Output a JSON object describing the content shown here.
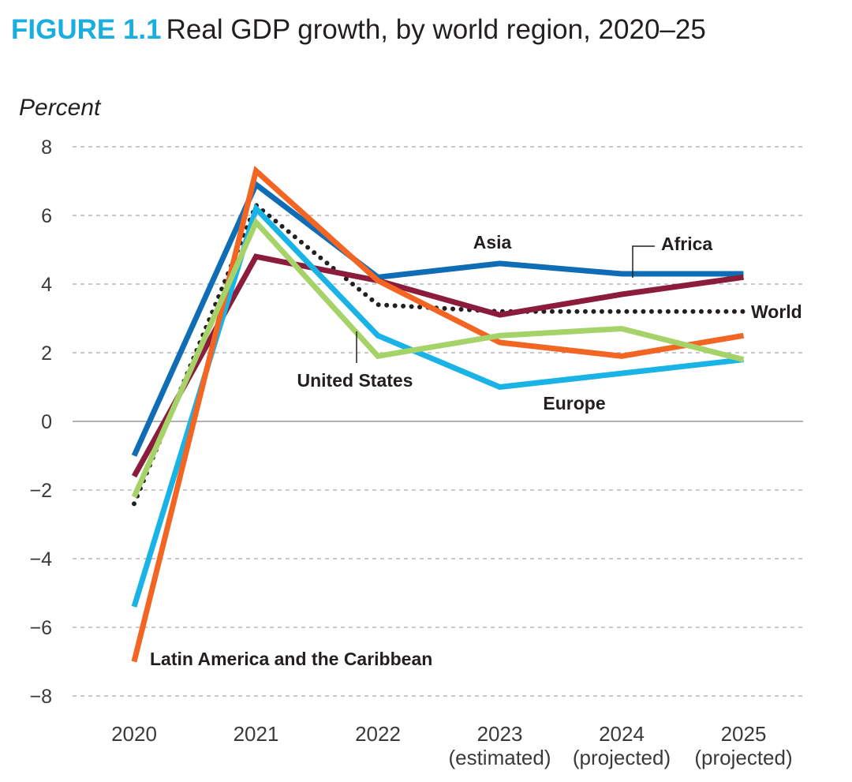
{
  "figure": {
    "label": "FIGURE 1.1",
    "title": "Real GDP growth, by world region, 2020–25"
  },
  "chart_data": {
    "type": "line",
    "title": "Real GDP growth, by world region, 2020–25",
    "ylabel": "Percent",
    "xlabel": "",
    "ylim": [
      -8,
      8
    ],
    "yticks": [
      8,
      6,
      4,
      2,
      0,
      -2,
      -4,
      -6,
      -8
    ],
    "ytick_labels": [
      "8",
      "6",
      "4",
      "2",
      "0",
      "−2",
      "−4",
      "−6",
      "−8"
    ],
    "grid": true,
    "categories": [
      {
        "year": "2020",
        "note": ""
      },
      {
        "year": "2021",
        "note": ""
      },
      {
        "year": "2022",
        "note": ""
      },
      {
        "year": "2023",
        "note": "(estimated)"
      },
      {
        "year": "2024",
        "note": "(projected)"
      },
      {
        "year": "2025",
        "note": "(projected)"
      }
    ],
    "series": [
      {
        "name": "Asia",
        "color": "#0f6db5",
        "style": "solid",
        "values": [
          -1.0,
          6.9,
          4.2,
          4.6,
          4.3,
          4.3
        ]
      },
      {
        "name": "Africa",
        "color": "#8b1c3c",
        "style": "solid",
        "values": [
          -1.6,
          4.8,
          4.1,
          3.1,
          3.7,
          4.2
        ]
      },
      {
        "name": "Europe",
        "color": "#19b3e6",
        "style": "solid",
        "values": [
          -5.4,
          6.2,
          2.5,
          1.0,
          1.4,
          1.8
        ]
      },
      {
        "name": "Latin America and the Caribbean",
        "color": "#f26522",
        "style": "solid",
        "values": [
          -7.0,
          7.3,
          4.1,
          2.3,
          1.9,
          2.5
        ]
      },
      {
        "name": "United States",
        "color": "#a6d369",
        "style": "solid",
        "values": [
          -2.2,
          5.8,
          1.9,
          2.5,
          2.7,
          1.8
        ]
      },
      {
        "name": "World",
        "color": "#231f20",
        "style": "dotted",
        "values": [
          -2.4,
          6.3,
          3.4,
          3.2,
          3.2,
          3.2
        ]
      }
    ]
  }
}
